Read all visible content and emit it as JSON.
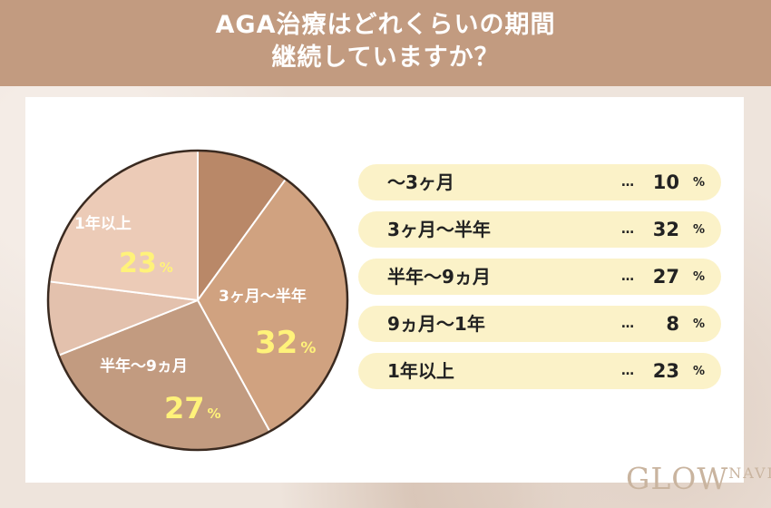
{
  "header": {
    "title_line1": "AGA治療はどれくらいの期間",
    "title_line2": "継続していますか？"
  },
  "chart_data": {
    "type": "pie",
    "title": "AGA治療はどれくらいの期間継続していますか？",
    "unit": "%",
    "categories": [
      "～3ヶ月",
      "3ヶ月～半年",
      "半年～9ヵ月",
      "9ヵ月～1年",
      "1年以上"
    ],
    "values": [
      10,
      32,
      27,
      8,
      23
    ],
    "colors": [
      "#b98868",
      "#d0a280",
      "#c29b80",
      "#e3c1ad",
      "#eccbb7"
    ],
    "slice_labels": [
      {
        "category": "3ヶ月～半年",
        "value_text": "32",
        "unit": "%"
      },
      {
        "category": "半年～9ヵ月",
        "value_text": "27",
        "unit": "%"
      },
      {
        "category": "1年以上",
        "value_text": "23",
        "unit": "%"
      }
    ],
    "legend": {
      "placement": "right",
      "items": [
        {
          "label": "～3ヶ月",
          "dots": "…",
          "value": "10",
          "unit": "%"
        },
        {
          "label": "3ヶ月～半年",
          "dots": "…",
          "value": "32",
          "unit": "%"
        },
        {
          "label": "半年～9ヵ月",
          "dots": "…",
          "value": "27",
          "unit": "%"
        },
        {
          "label": "9ヵ月～1年",
          "dots": "…",
          "value": "8",
          "unit": "%"
        },
        {
          "label": "1年以上",
          "dots": "…",
          "value": "23",
          "unit": "%"
        }
      ]
    },
    "label_value_color": "#fff27a"
  },
  "logo": {
    "main": "GLOW",
    "sub": "NAVI"
  }
}
